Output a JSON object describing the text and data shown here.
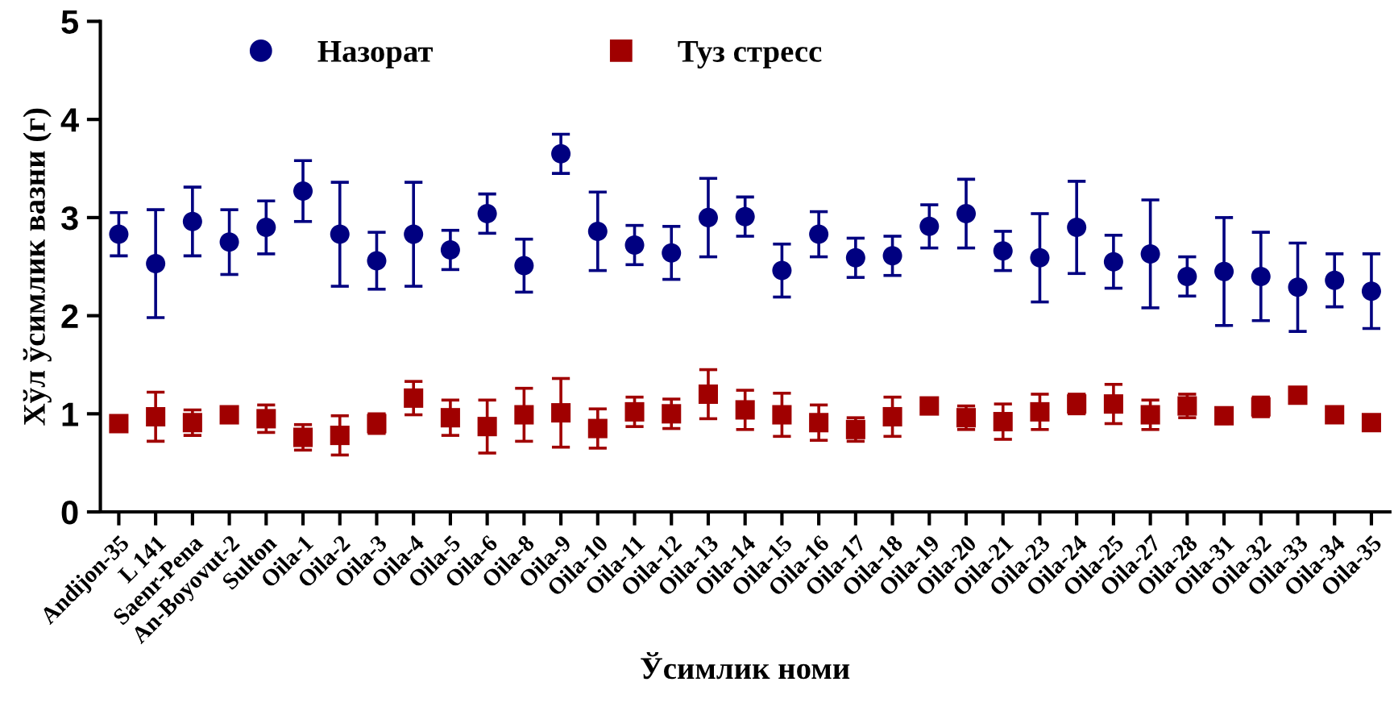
{
  "chart_data": {
    "type": "scatter",
    "xlabel": "Ўсимлик номи",
    "ylabel": "Хўл ўсимлик вазни (г)",
    "categories": [
      "Andijon-35",
      "L 141",
      "Saenr-Pena",
      "An-Boyovut-2",
      "Sulton",
      "Oila-1",
      "Oila-2",
      "Oila-3",
      "Oila-4",
      "Oila-5",
      "Oila-6",
      "Oila-8",
      "Oila-9",
      "Oila-10",
      "Oila-11",
      "Oila-12",
      "Oila-13",
      "Oila-14",
      "Oila-15",
      "Oila-16",
      "Oila-17",
      "Oila-18",
      "Oila-19",
      "Oila-20",
      "Oila-21",
      "Oila-23",
      "Oila-24",
      "Oila-25",
      "Oila-27",
      "Oila-28",
      "Oila-31",
      "Oila-32",
      "Oila-33",
      "Oila-34",
      "Oila-35"
    ],
    "series": [
      {
        "name": "Назорат",
        "color": "#000080",
        "marker": "circle",
        "values": [
          2.83,
          2.53,
          2.96,
          2.75,
          2.9,
          3.27,
          2.83,
          2.56,
          2.83,
          2.67,
          3.04,
          2.51,
          3.65,
          2.86,
          2.72,
          2.64,
          3.0,
          3.01,
          2.46,
          2.83,
          2.59,
          2.61,
          2.91,
          3.04,
          2.66,
          2.59,
          2.9,
          2.55,
          2.63,
          2.4,
          2.45,
          2.4,
          2.29,
          2.36,
          2.25
        ],
        "errors": [
          0.22,
          0.55,
          0.35,
          0.33,
          0.27,
          0.31,
          0.53,
          0.29,
          0.53,
          0.2,
          0.2,
          0.27,
          0.2,
          0.4,
          0.2,
          0.27,
          0.4,
          0.2,
          0.27,
          0.23,
          0.2,
          0.2,
          0.22,
          0.35,
          0.2,
          0.45,
          0.47,
          0.27,
          0.55,
          0.2,
          0.55,
          0.45,
          0.45,
          0.27,
          0.38
        ]
      },
      {
        "name": "Туз стресс",
        "color": "#a00000",
        "marker": "square",
        "values": [
          0.9,
          0.97,
          0.91,
          0.99,
          0.95,
          0.76,
          0.78,
          0.9,
          1.16,
          0.96,
          0.87,
          0.99,
          1.01,
          0.85,
          1.02,
          1.0,
          1.2,
          1.04,
          0.99,
          0.91,
          0.84,
          0.97,
          1.08,
          0.96,
          0.92,
          1.02,
          1.1,
          1.1,
          0.99,
          1.08,
          0.98,
          1.07,
          1.19,
          0.99,
          0.91
        ],
        "errors": [
          null,
          0.25,
          0.13,
          null,
          0.14,
          0.13,
          0.2,
          0.1,
          0.17,
          0.18,
          0.27,
          0.27,
          0.35,
          0.2,
          0.15,
          0.15,
          0.25,
          0.2,
          0.22,
          0.18,
          0.12,
          0.2,
          null,
          0.12,
          0.18,
          0.18,
          0.1,
          0.2,
          0.15,
          0.12,
          null,
          0.1,
          null,
          null,
          null
        ]
      }
    ],
    "ylim": [
      0,
      5
    ],
    "yticks": [
      0,
      1,
      2,
      3,
      4,
      5
    ],
    "grid": false,
    "legend": "top"
  }
}
